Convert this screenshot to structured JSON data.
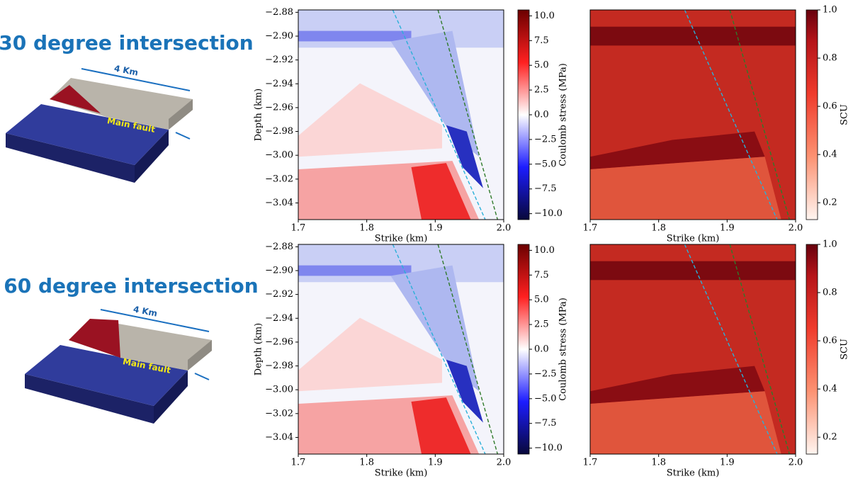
{
  "panels": [
    {
      "title": "30 degree intersection",
      "length_label": "4 Km",
      "fault_label": "Main fault"
    },
    {
      "title": "60 degree intersection",
      "length_label": "4 Km",
      "fault_label": "Main fault"
    }
  ],
  "chart_data": [
    {
      "type": "heatmap",
      "field": "coulomb",
      "xlabel": "Strike (km)",
      "ylabel": "Depth (km)",
      "colorbar_label": "Coulomb stress (MPa)",
      "xlim": [
        1.7,
        2.0
      ],
      "xticks": [
        1.7,
        1.8,
        1.9,
        {
          "value": 2,
          "label": "2.0"
        }
      ],
      "ylim": [
        -3.054,
        -2.878
      ],
      "yticks": [
        {
          "value": -2.88,
          "label": "−2.88"
        },
        {
          "value": -2.9,
          "label": "−2.90"
        },
        {
          "value": -2.92,
          "label": "−2.92"
        },
        {
          "value": -2.94,
          "label": "−2.94"
        },
        {
          "value": -2.96,
          "label": "−2.96"
        },
        {
          "value": -2.98,
          "label": "−2.98"
        },
        {
          "value": -3,
          "label": "−3.00"
        },
        {
          "value": -3.02,
          "label": "−3.02"
        },
        {
          "value": -3.04,
          "label": "−3.04"
        }
      ],
      "clim": [
        -10.6,
        10.6
      ],
      "cticks": [
        {
          "value": 10,
          "label": "10.0"
        },
        7.5,
        {
          "value": 5,
          "label": "5.0"
        },
        2.5,
        {
          "value": 0,
          "label": "0.0"
        },
        {
          "value": -2.5,
          "label": "−2.5"
        },
        {
          "value": -5,
          "label": "−5.0"
        },
        {
          "value": -7.5,
          "label": "−7.5"
        },
        {
          "value": -10,
          "label": "−10.0"
        }
      ]
    },
    {
      "type": "heatmap",
      "field": "scu",
      "xlabel": "Strike (km)",
      "colorbar_label": "SCU",
      "xlim": [
        1.7,
        2.0
      ],
      "xticks": [
        1.7,
        1.8,
        1.9,
        {
          "value": 2,
          "label": "2.0"
        }
      ],
      "ylim": [
        -3.054,
        -2.878
      ],
      "clim": [
        0.13,
        1
      ],
      "cticks": [
        0.2,
        0.4,
        0.6,
        0.8,
        {
          "value": 1,
          "label": "1.0"
        }
      ]
    },
    {
      "type": "heatmap",
      "field": "coulomb",
      "xlabel": "Strike (km)",
      "ylabel": "Depth (km)",
      "colorbar_label": "Coulomb stress (MPa)",
      "xlim": [
        1.7,
        2.0
      ],
      "xticks": [
        1.7,
        1.8,
        1.9,
        {
          "value": 2,
          "label": "2.0"
        }
      ],
      "ylim": [
        -3.054,
        -2.878
      ],
      "yticks": [
        {
          "value": -2.88,
          "label": "−2.88"
        },
        {
          "value": -2.9,
          "label": "−2.90"
        },
        {
          "value": -2.92,
          "label": "−2.92"
        },
        {
          "value": -2.94,
          "label": "−2.94"
        },
        {
          "value": -2.96,
          "label": "−2.96"
        },
        {
          "value": -2.98,
          "label": "−2.98"
        },
        {
          "value": -3,
          "label": "−3.00"
        },
        {
          "value": -3.02,
          "label": "−3.02"
        },
        {
          "value": -3.04,
          "label": "−3.04"
        }
      ],
      "clim": [
        -10.6,
        10.6
      ],
      "cticks": [
        {
          "value": 10,
          "label": "10.0"
        },
        7.5,
        {
          "value": 5,
          "label": "5.0"
        },
        2.5,
        {
          "value": 0,
          "label": "0.0"
        },
        {
          "value": -2.5,
          "label": "−2.5"
        },
        {
          "value": -5,
          "label": "−5.0"
        },
        {
          "value": -7.5,
          "label": "−7.5"
        },
        {
          "value": -10,
          "label": "−10.0"
        }
      ]
    },
    {
      "type": "heatmap",
      "field": "scu",
      "xlabel": "Strike (km)",
      "colorbar_label": "SCU",
      "xlim": [
        1.7,
        2.0
      ],
      "xticks": [
        1.7,
        1.8,
        1.9,
        {
          "value": 2,
          "label": "2.0"
        }
      ],
      "ylim": [
        -3.054,
        -2.878
      ],
      "clim": [
        0.13,
        1
      ],
      "cticks": [
        0.2,
        0.4,
        0.6,
        0.8,
        {
          "value": 1,
          "label": "1.0"
        }
      ]
    }
  ]
}
